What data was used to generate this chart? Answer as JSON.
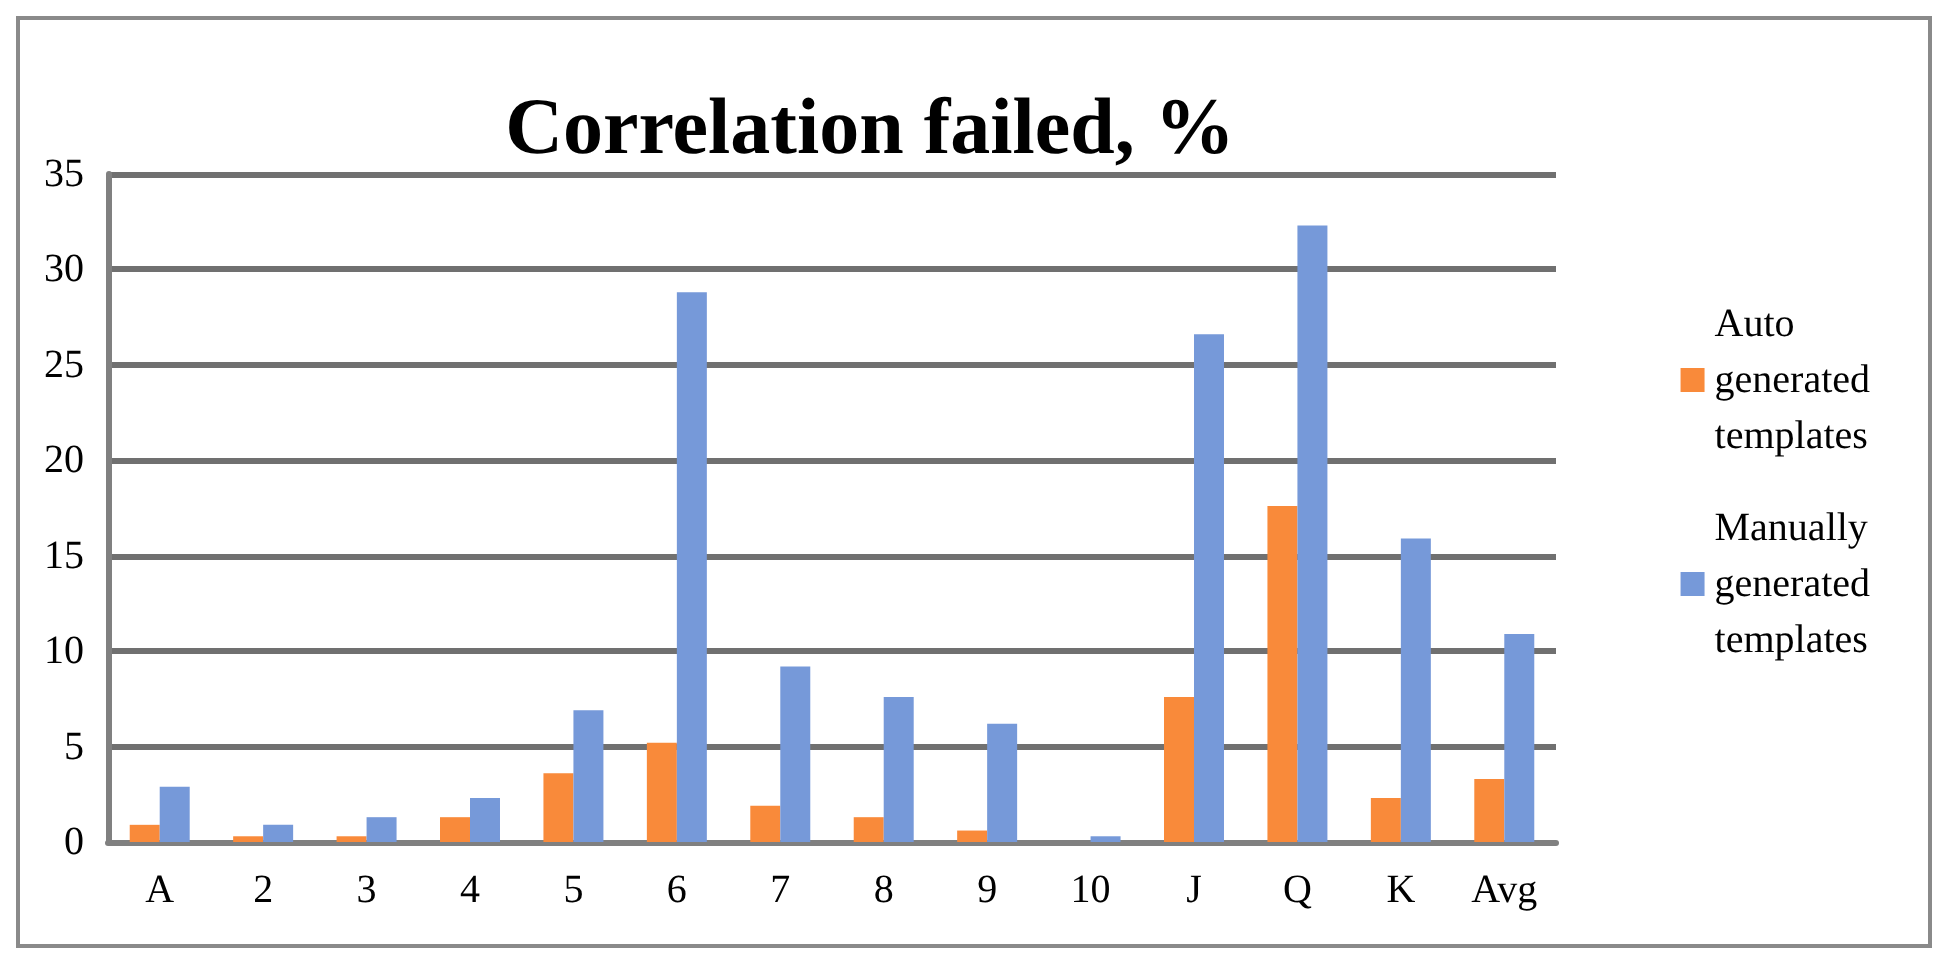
{
  "chart_data": {
    "type": "bar",
    "title": "Correlation failed, %",
    "categories": [
      "A",
      "2",
      "3",
      "4",
      "5",
      "6",
      "7",
      "8",
      "9",
      "10",
      "J",
      "Q",
      "K",
      "Avg"
    ],
    "series": [
      {
        "name": "Auto generated templates",
        "color": "#f98a3a",
        "values": [
          0.9,
          0.3,
          0.3,
          1.3,
          3.6,
          5.2,
          1.9,
          1.3,
          0.6,
          0,
          7.6,
          17.6,
          2.3,
          3.3
        ]
      },
      {
        "name": "Manually generated templates",
        "color": "#7699d9",
        "values": [
          2.9,
          0.9,
          1.3,
          2.3,
          6.9,
          28.8,
          9.2,
          7.6,
          6.2,
          0.3,
          26.6,
          32.3,
          15.9,
          10.9
        ]
      }
    ],
    "ylim": [
      0,
      35
    ],
    "yticks": [
      0,
      5,
      10,
      15,
      20,
      25,
      30,
      35
    ],
    "grid": "y",
    "legend": "right"
  }
}
